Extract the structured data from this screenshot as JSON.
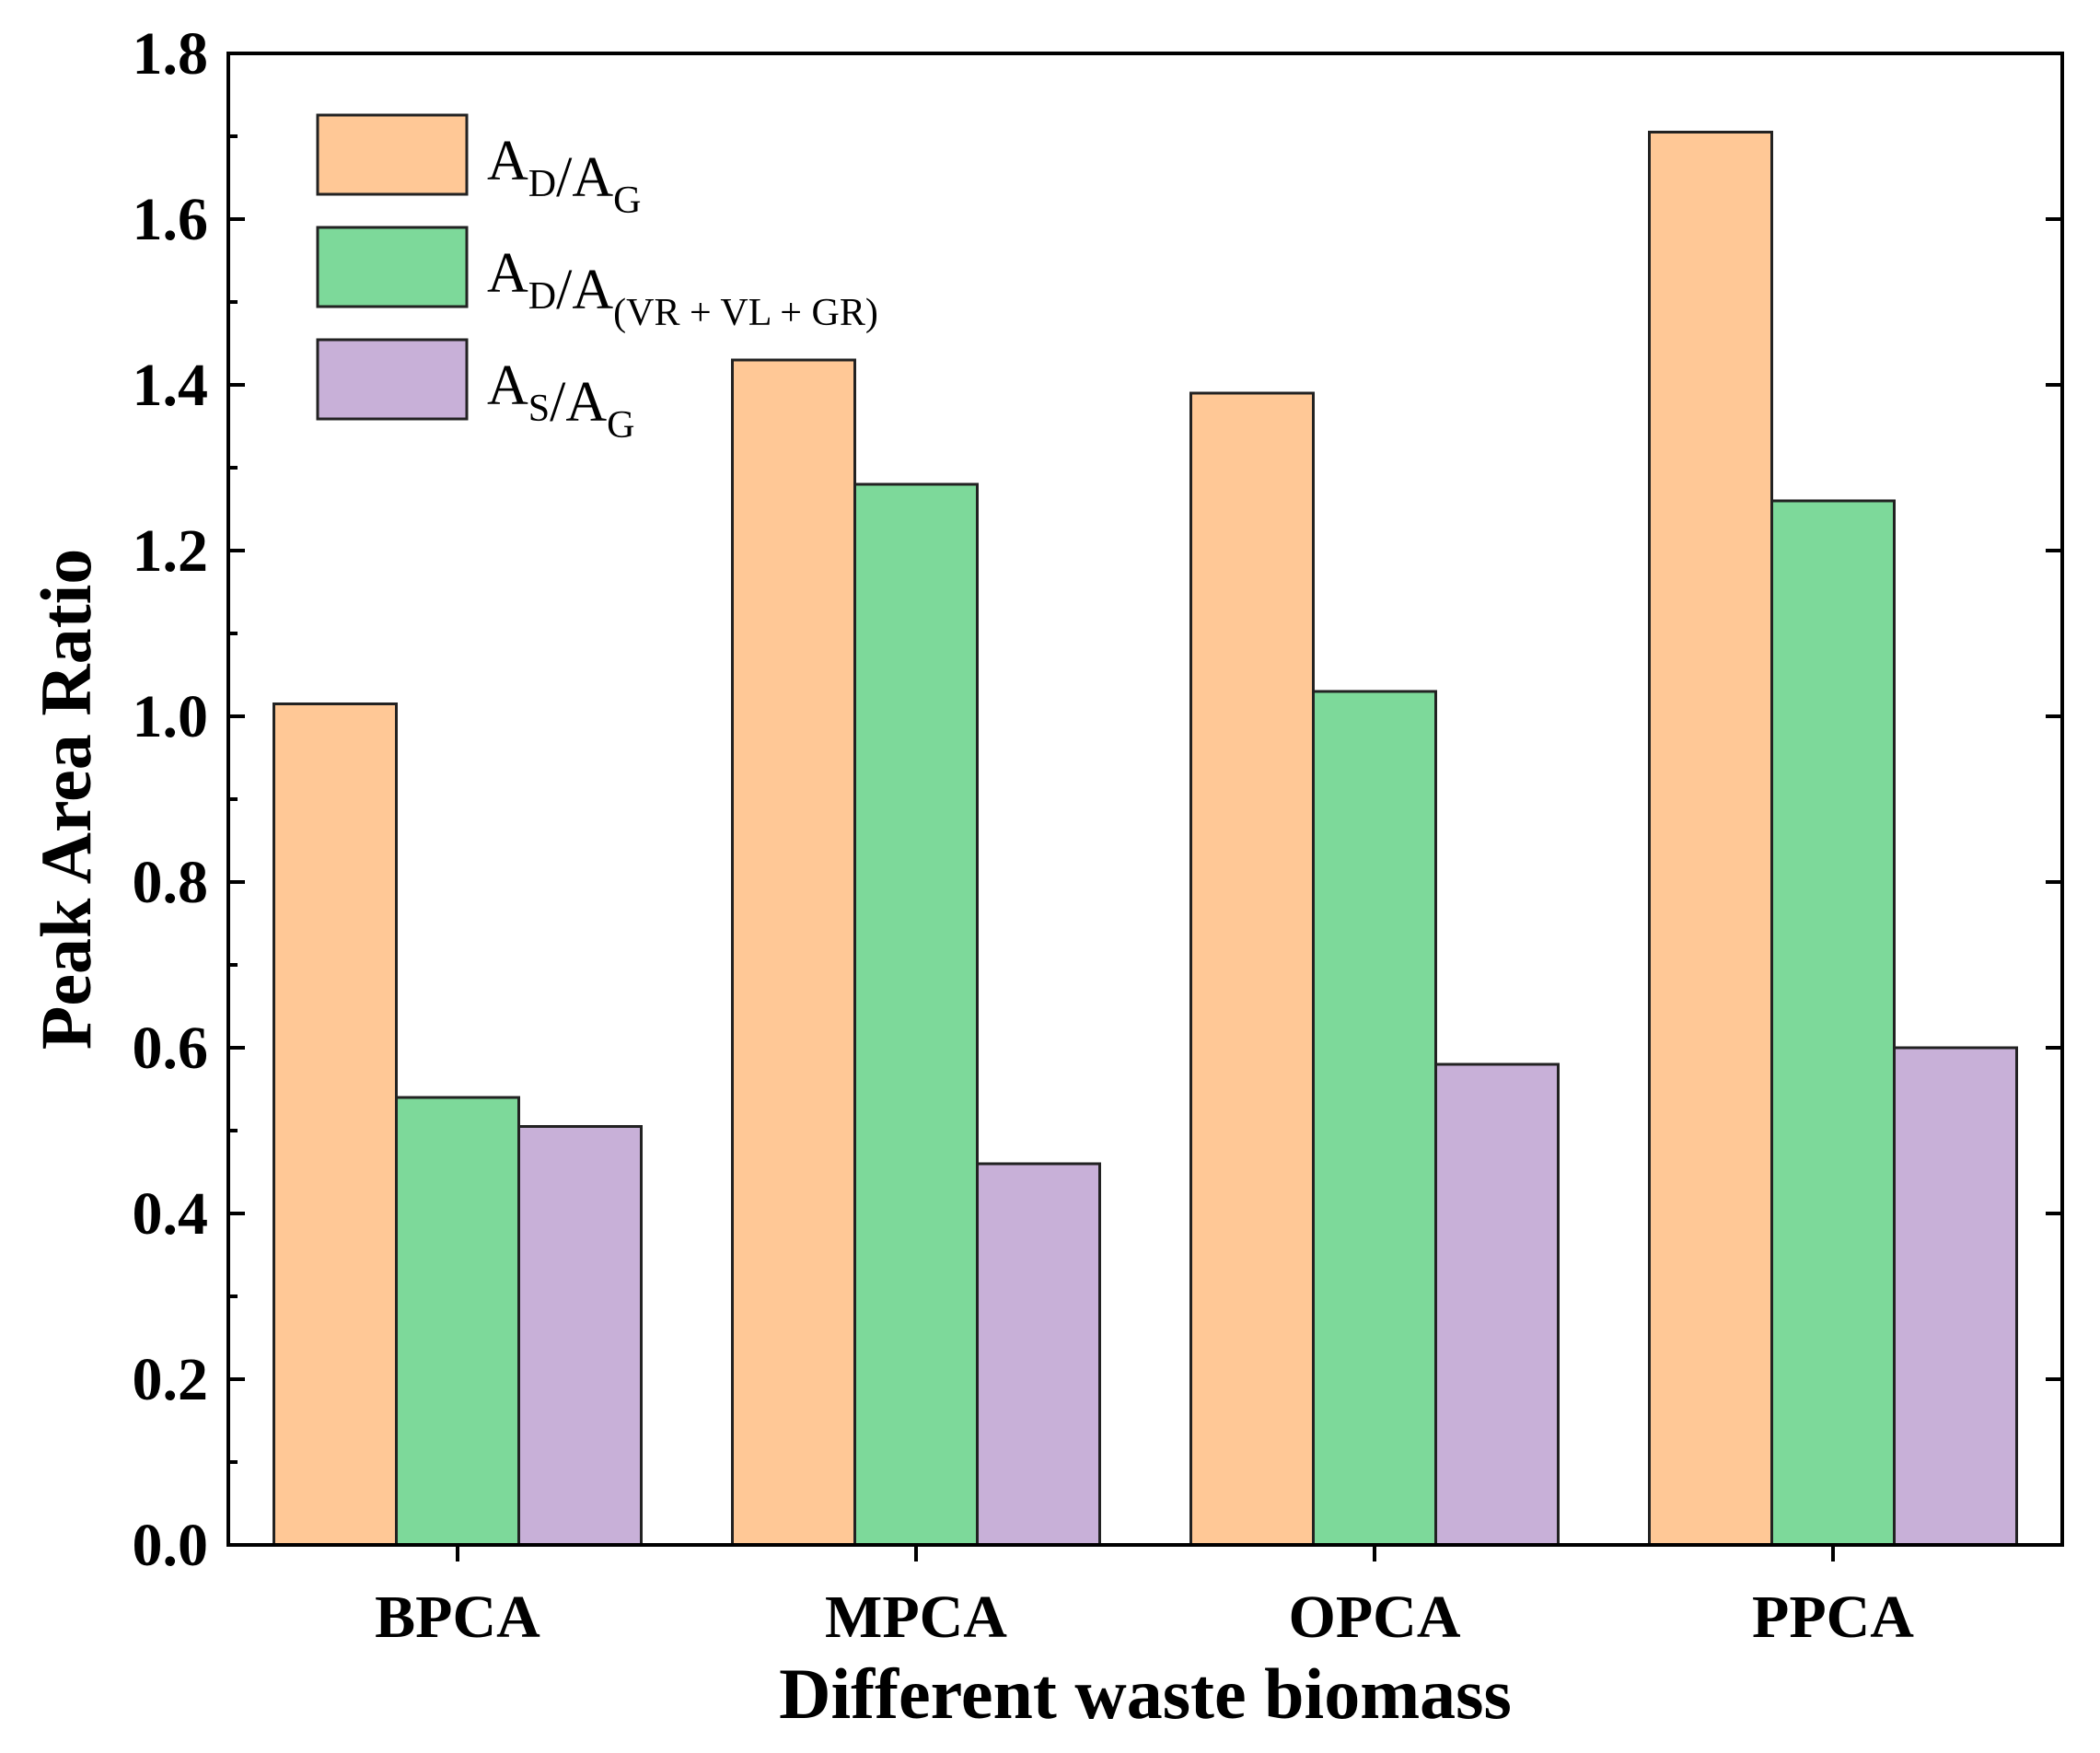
{
  "chart_data": {
    "type": "bar",
    "categories": [
      "BPCA",
      "MPCA",
      "OPCA",
      "PPCA"
    ],
    "series": [
      {
        "name": "A_D/A_G",
        "legend_main": "A",
        "legend_parts": [
          {
            "t": "A",
            "sub": "D"
          },
          {
            "t": "/A",
            "sub": "G"
          }
        ],
        "color": "#FFC896",
        "values": [
          1.015,
          1.43,
          1.39,
          1.705
        ]
      },
      {
        "name": "A_D/A_(VR + VL + GR)",
        "legend_parts": [
          {
            "t": "A",
            "sub": "D"
          },
          {
            "t": "/A",
            "sub": "(VR + VL + GR)"
          }
        ],
        "color": "#7DD99A",
        "values": [
          0.54,
          1.28,
          1.03,
          1.26
        ]
      },
      {
        "name": "A_S/A_G",
        "legend_parts": [
          {
            "t": "A",
            "sub": "S"
          },
          {
            "t": "/A",
            "sub": "G"
          }
        ],
        "color": "#C8B0D8",
        "values": [
          0.505,
          0.46,
          0.58,
          0.6
        ]
      }
    ],
    "yticks": [
      "0.0",
      "0.2",
      "0.4",
      "0.6",
      "0.8",
      "1.0",
      "1.2",
      "1.4",
      "1.6",
      "1.8"
    ],
    "ylim": [
      0,
      1.8
    ],
    "xlabel": "Different waste biomass",
    "ylabel": "Peak Area Ratio",
    "title": "",
    "legend_position": "top-left",
    "grid": false
  }
}
